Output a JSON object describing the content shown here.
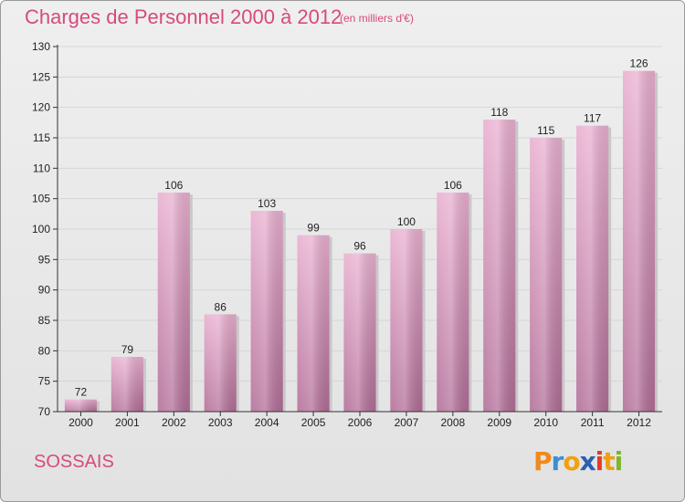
{
  "header": {
    "title": "Charges de Personnel 2000 à 2012",
    "subtitle": "(en milliers d'€)"
  },
  "footer": {
    "commune": "SOSSAIS",
    "brand": "Proxiti",
    "brand_letter_colors": [
      "#f08a1a",
      "#3a8fd4",
      "#f0a010",
      "#2a5fb0",
      "#e23a2a",
      "#f0a010",
      "#7ab82a"
    ]
  },
  "colors": {
    "title": "#d64a7e",
    "bar_light": "#eab0d0",
    "bar_dark": "#b26e98",
    "bar_shadow": "#c9c9c9",
    "grid": "#d6d6d6",
    "axis": "#333333"
  },
  "chart_data": {
    "type": "bar",
    "title": "Charges de Personnel 2000 à 2012",
    "subtitle": "(en milliers d'€)",
    "categories": [
      "2000",
      "2001",
      "2002",
      "2003",
      "2004",
      "2005",
      "2006",
      "2007",
      "2008",
      "2009",
      "2010",
      "2011",
      "2012"
    ],
    "values": [
      72,
      79,
      106,
      86,
      103,
      99,
      96,
      100,
      106,
      118,
      115,
      117,
      126
    ],
    "ylim": [
      70,
      130
    ],
    "yticks": [
      70,
      75,
      80,
      85,
      90,
      95,
      100,
      105,
      110,
      115,
      120,
      125,
      130
    ],
    "grid": true,
    "data_labels": true
  }
}
